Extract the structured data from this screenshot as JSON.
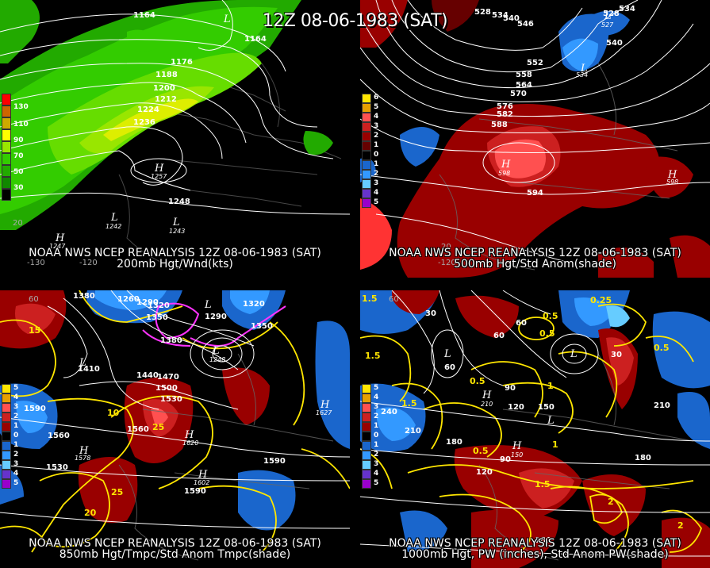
{
  "title": "12Z 08-06-1983 (SAT)",
  "panels": [
    {
      "caption": "NOAA NWS NCEP REANALYSIS 12Z 08-06-1983 (SAT)",
      "subtitle": "200mb Hgt/Wnd(kts)",
      "legend": [
        "130",
        "110",
        "90",
        "70",
        "50",
        "30"
      ],
      "legend_colors": [
        "#ff0000",
        "#cc6600",
        "#ccaa00",
        "#ffff00",
        "#99e600",
        "#33cc00",
        "#22aa00",
        "#118800"
      ],
      "contour_labels": [
        "1164",
        "1164",
        "1176",
        "1188",
        "1200",
        "1212",
        "1224",
        "1236",
        "1248",
        "1257",
        "1242",
        "1243",
        "1247",
        "1164"
      ],
      "lat_labels": [
        "30",
        "20"
      ],
      "lon_labels": [
        "-130",
        "-120"
      ]
    },
    {
      "caption": "NOAA NWS NCEP REANALYSIS 12Z 08-06-1983 (SAT)",
      "subtitle": "500mb Hgt/Std Anom(shade)",
      "legend": [
        "6",
        "5",
        "4",
        "3",
        "2",
        "1",
        "0",
        "1",
        "2",
        "3",
        "4",
        "5"
      ],
      "legend_colors": [
        "#ffe600",
        "#e6a000",
        "#ff5050",
        "#cc2020",
        "#990000",
        "#660000",
        "#000000",
        "#1a66cc",
        "#3399ff",
        "#66ccff",
        "#6633cc",
        "#9900cc"
      ],
      "contour_labels": [
        "528",
        "534",
        "540",
        "546",
        "528",
        "534",
        "540",
        "552",
        "558",
        "564",
        "570",
        "576",
        "582",
        "588",
        "594",
        "598",
        "534",
        "527",
        "598"
      ],
      "lat_labels": [
        "20"
      ],
      "lon_labels": [
        "-120"
      ]
    },
    {
      "caption": "NOAA NWS NCEP REANALYSIS 12Z 08-06-1983 (SAT)",
      "subtitle": "850mb Hgt/Tmpc/Std Anom Tmpc(shade)",
      "legend": [
        "5",
        "4",
        "3",
        "2",
        "1",
        "0",
        "1",
        "2",
        "3",
        "4",
        "5"
      ],
      "legend_colors": [
        "#ffe600",
        "#e6a000",
        "#ff5050",
        "#cc2020",
        "#990000",
        "#000000",
        "#1a66cc",
        "#3399ff",
        "#66ccff",
        "#6633cc",
        "#9900cc"
      ],
      "contour_labels": [
        "1380",
        "1260",
        "1290",
        "1320",
        "1350",
        "1380",
        "1290",
        "1320",
        "1350",
        "1410",
        "1440",
        "1470",
        "1500",
        "1530",
        "1590",
        "1560",
        "1560",
        "1530",
        "1590",
        "1590",
        "1620",
        "1602",
        "1578",
        "1627",
        "1260",
        "1248"
      ],
      "temp_labels": [
        "15",
        "10",
        "25",
        "20",
        "25"
      ],
      "lat_labels": [
        "60"
      ],
      "lon_labels": [
        "-130",
        "-120"
      ]
    },
    {
      "caption": "NOAA NWS NCEP REANALYSIS 12Z 08-06-1983 (SAT)",
      "subtitle": "1000mb Hgt, PW (inches), Std Anom PW(shade)",
      "legend": [
        "5",
        "4",
        "3",
        "2",
        "1",
        "0",
        "1",
        "2",
        "3",
        "4",
        "5"
      ],
      "legend_colors": [
        "#ffe600",
        "#e6a000",
        "#ff5050",
        "#cc2020",
        "#990000",
        "#000000",
        "#1a66cc",
        "#3399ff",
        "#66ccff",
        "#6633cc",
        "#9900cc"
      ],
      "contour_labels": [
        "30",
        "60",
        "60",
        "90",
        "120",
        "150",
        "180",
        "210",
        "240",
        "210",
        "180",
        "30",
        "60",
        "90",
        "120",
        "180",
        "210",
        "150",
        "180"
      ],
      "pw_labels": [
        "1.5",
        "0.5",
        "0.25",
        "0.5",
        "1",
        "1.5",
        "0.5",
        "0.5",
        "1",
        "1.5",
        "2",
        "0.5",
        "1.5",
        "2"
      ],
      "lat_labels": [
        "60"
      ],
      "lon_labels": []
    }
  ]
}
